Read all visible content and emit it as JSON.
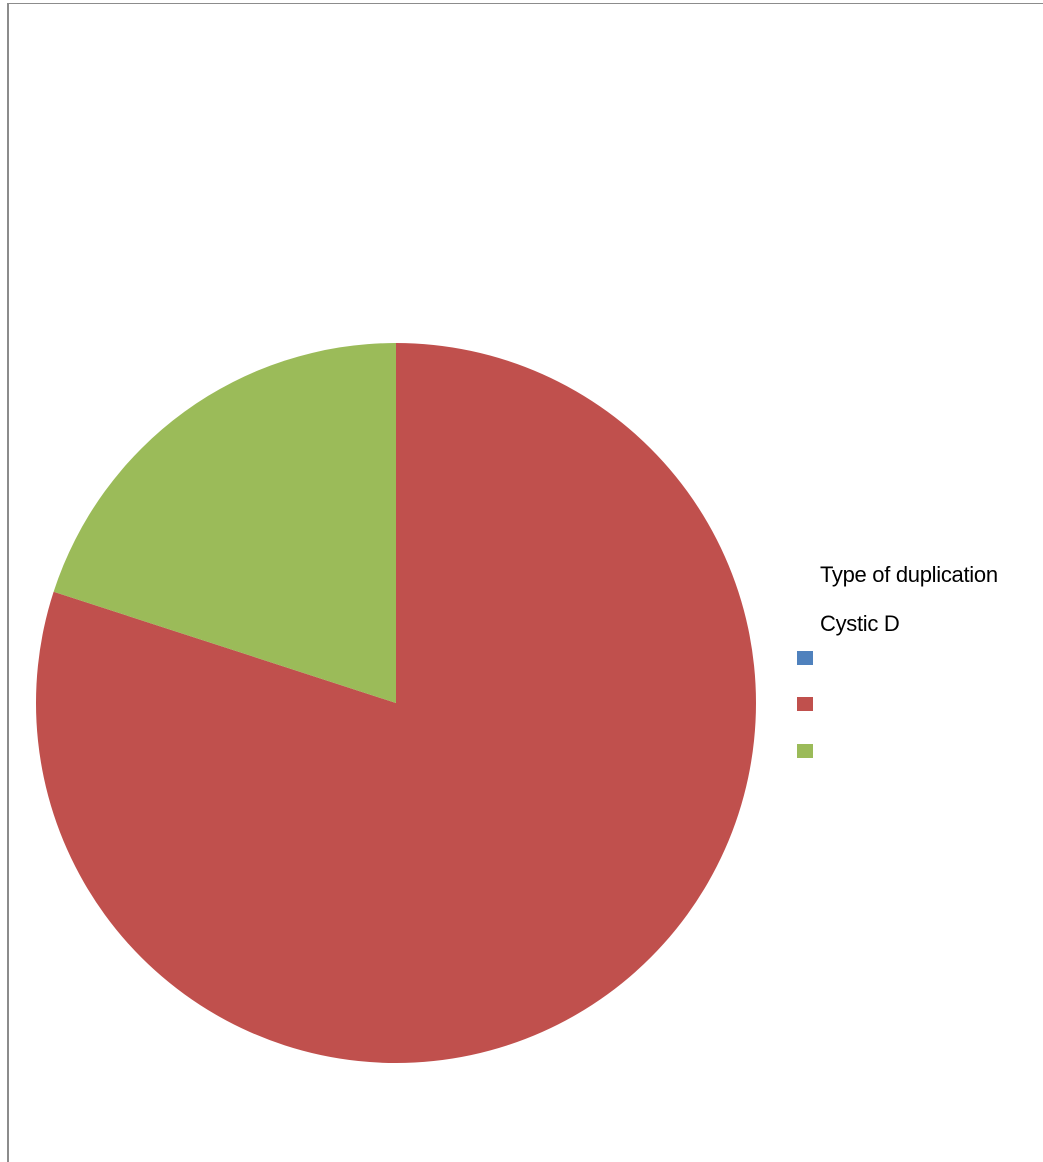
{
  "chart_data": {
    "type": "pie",
    "title": "",
    "legend_title": "Type of duplication",
    "legend_subtitle": "Cystic D",
    "legend_position": "right",
    "slices": [
      {
        "label": "",
        "value": 0,
        "color": "#4F81BD"
      },
      {
        "label": "",
        "value": 80,
        "color": "#C0504D"
      },
      {
        "label": "",
        "value": 20,
        "color": "#9BBB59"
      }
    ],
    "start_angle": "12 o'clock",
    "direction": "clockwise"
  }
}
